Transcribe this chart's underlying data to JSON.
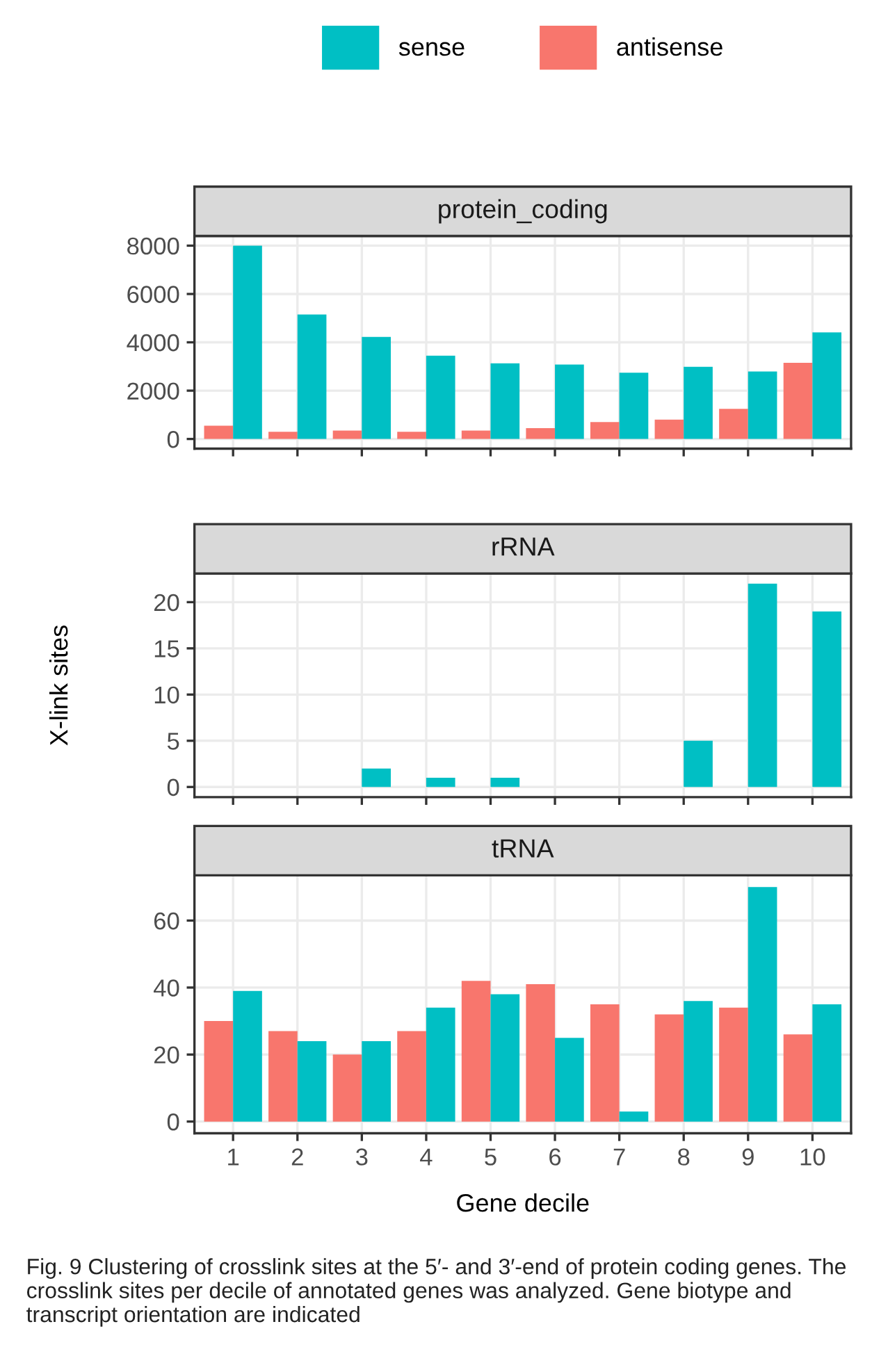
{
  "chart_data": [
    {
      "type": "bar",
      "title": "protein_coding",
      "categories": [
        "1",
        "2",
        "3",
        "4",
        "5",
        "6",
        "7",
        "8",
        "9",
        "10"
      ],
      "legend": "top",
      "grid": true,
      "tick_labels": "y",
      "series": [
        {
          "name": "antisense",
          "color": "#f8766d",
          "values": [
            550,
            300,
            350,
            300,
            350,
            450,
            700,
            800,
            1250,
            3150
          ]
        },
        {
          "name": "sense",
          "color": "#00bfc4",
          "values": [
            8000,
            5150,
            4220,
            3450,
            3130,
            3080,
            2740,
            2990,
            2790,
            4410
          ]
        }
      ],
      "ylim": [
        -400,
        8400
      ],
      "yticks": [
        0,
        2000,
        4000,
        6000,
        8000
      ]
    },
    {
      "type": "bar",
      "title": "rRNA",
      "categories": [
        "1",
        "2",
        "3",
        "4",
        "5",
        "6",
        "7",
        "8",
        "9",
        "10"
      ],
      "grid": true,
      "tick_labels": "y",
      "ylabel": "X-link sites",
      "series": [
        {
          "color": "#f8766d",
          "values": [
            null,
            null,
            null,
            null,
            null,
            null,
            null,
            null,
            null,
            null
          ]
        },
        {
          "color": "#00bfc4",
          "values": [
            null,
            null,
            2,
            1,
            1,
            null,
            null,
            5,
            22,
            19
          ]
        }
      ],
      "ylim": [
        -1.1,
        23.1
      ],
      "yticks": [
        0,
        5,
        10,
        15,
        20
      ]
    },
    {
      "type": "bar",
      "title": "tRNA",
      "categories": [
        "1",
        "2",
        "3",
        "4",
        "5",
        "6",
        "7",
        "8",
        "9",
        "10"
      ],
      "grid": true,
      "xlabel": "Gene decile",
      "series": [
        {
          "color": "#f8766d",
          "values": [
            30,
            27,
            20,
            27,
            42,
            41,
            35,
            32,
            34,
            26
          ]
        },
        {
          "color": "#00bfc4",
          "values": [
            39,
            24,
            24,
            34,
            38,
            25,
            3,
            36,
            70,
            35
          ]
        }
      ],
      "ylim": [
        -3.5,
        73.5
      ],
      "yticks": [
        0,
        20,
        40,
        60
      ],
      "annotations": [
        "Fig. 9 Clustering of crosslink sites at the 5′- and 3′-end of protein coding genes. The crosslink sites per decile of annotated genes was analyzed. Gene biotype and transcript orientation are indicated"
      ]
    }
  ]
}
